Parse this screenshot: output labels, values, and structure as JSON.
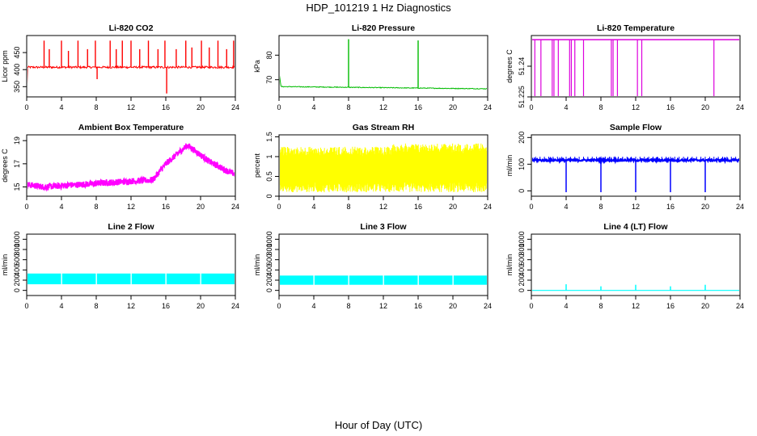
{
  "figure": {
    "title": "HDP_101219  1 Hz Diagnostics",
    "xlabel": "Hour of Day (UTC)"
  },
  "chart_data": [
    {
      "type": "line",
      "title": "Li-820 CO2",
      "ylabel": "Licor ppm",
      "color": "#ff0000",
      "xlim": [
        0,
        24
      ],
      "ylim": [
        320,
        500
      ],
      "xticks": [
        0,
        4,
        8,
        12,
        16,
        20,
        24
      ],
      "yticks": [
        350,
        400,
        450
      ],
      "baseline": 407,
      "noise": 3,
      "spikes": [
        {
          "x": 2.0,
          "y": 485
        },
        {
          "x": 2.6,
          "y": 460
        },
        {
          "x": 4.0,
          "y": 485
        },
        {
          "x": 4.8,
          "y": 455
        },
        {
          "x": 5.9,
          "y": 485
        },
        {
          "x": 7.0,
          "y": 460
        },
        {
          "x": 7.9,
          "y": 485
        },
        {
          "x": 8.1,
          "y": 372
        },
        {
          "x": 9.6,
          "y": 485
        },
        {
          "x": 10.3,
          "y": 460
        },
        {
          "x": 11.0,
          "y": 485
        },
        {
          "x": 12.0,
          "y": 485
        },
        {
          "x": 13.0,
          "y": 460
        },
        {
          "x": 14.0,
          "y": 485
        },
        {
          "x": 15.1,
          "y": 460
        },
        {
          "x": 15.9,
          "y": 485
        },
        {
          "x": 16.1,
          "y": 330
        },
        {
          "x": 17.2,
          "y": 460
        },
        {
          "x": 18.3,
          "y": 485
        },
        {
          "x": 19.0,
          "y": 465
        },
        {
          "x": 20.1,
          "y": 485
        },
        {
          "x": 21.0,
          "y": 465
        },
        {
          "x": 22.0,
          "y": 485
        },
        {
          "x": 23.0,
          "y": 460
        },
        {
          "x": 23.8,
          "y": 485
        },
        {
          "x": 24.0,
          "y": 385
        }
      ]
    },
    {
      "type": "line",
      "title": "Li-820 Pressure",
      "ylabel": "kPa",
      "color": "#00bb00",
      "xlim": [
        0,
        24
      ],
      "ylim": [
        63,
        88
      ],
      "xticks": [
        0,
        4,
        8,
        12,
        16,
        20,
        24
      ],
      "yticks": [
        70,
        80
      ],
      "start": 73,
      "baseline_start": 67.2,
      "baseline_end": 66.3,
      "spikes": [
        {
          "x": 8.0,
          "y": 86.5
        },
        {
          "x": 16.0,
          "y": 86.0
        },
        {
          "x": 24.0,
          "y": 86.0
        }
      ]
    },
    {
      "type": "line",
      "title": "Li-820 Temperature",
      "ylabel": "degrees C",
      "color": "#dd00dd",
      "xlim": [
        0,
        24
      ],
      "ylim": [
        51.225,
        51.255
      ],
      "xticks": [
        0,
        4,
        8,
        12,
        16,
        20,
        24
      ],
      "yticks": [
        51.225,
        51.24
      ],
      "baseline": 51.253,
      "dips": [
        0.4,
        1.1,
        2.4,
        2.6,
        3.1,
        4.4,
        4.6,
        5.0,
        6.0,
        9.2,
        9.4,
        9.9,
        12.2,
        12.7,
        21.0
      ]
    },
    {
      "type": "line",
      "title": "Ambient Box Temperature",
      "ylabel": "degrees C",
      "color": "#ff00ff",
      "xlim": [
        0,
        24
      ],
      "ylim": [
        14.2,
        19.5
      ],
      "xticks": [
        0,
        4,
        8,
        12,
        16,
        20,
        24
      ],
      "yticks": [
        15,
        17,
        19
      ],
      "x": [
        0,
        2,
        6,
        12,
        14.5,
        16,
        18.5,
        21,
        23,
        24
      ],
      "y": [
        15.2,
        15.0,
        15.2,
        15.5,
        15.6,
        17.0,
        18.6,
        17.2,
        16.4,
        16.1
      ],
      "band": 0.5
    },
    {
      "type": "line",
      "title": "Gas Stream RH",
      "ylabel": "percent",
      "color": "#ffff00",
      "xlim": [
        0,
        24
      ],
      "ylim": [
        0,
        1.55
      ],
      "xticks": [
        0,
        4,
        8,
        12,
        16,
        20,
        24
      ],
      "yticks": [
        0,
        0.5,
        1.0,
        1.5
      ],
      "low": 0.1,
      "high": 1.25
    },
    {
      "type": "line",
      "title": "Sample Flow",
      "ylabel": "ml/min",
      "color": "#0000ff",
      "xlim": [
        0,
        24
      ],
      "ylim": [
        -20,
        210
      ],
      "xticks": [
        0,
        4,
        8,
        12,
        16,
        20,
        24
      ],
      "yticks": [
        0,
        100,
        200
      ],
      "baseline": 115,
      "drops": [
        4,
        8,
        12,
        16,
        20,
        24
      ]
    },
    {
      "type": "line",
      "title": "Line 2 Flow",
      "ylabel": "ml/min",
      "color": "#00ffff",
      "xlim": [
        0,
        24
      ],
      "ylim": [
        -100,
        1100
      ],
      "xticks": [
        0,
        4,
        8,
        12,
        16,
        20,
        24
      ],
      "yticks": [
        0,
        200,
        400,
        600,
        800,
        1000
      ],
      "low": 120,
      "high": 330,
      "gaps": [
        4,
        8,
        12,
        16,
        20
      ]
    },
    {
      "type": "line",
      "title": "Line 3 Flow",
      "ylabel": "ml/min",
      "color": "#00ffff",
      "xlim": [
        0,
        24
      ],
      "ylim": [
        -100,
        1100
      ],
      "xticks": [
        0,
        4,
        8,
        12,
        16,
        20,
        24
      ],
      "yticks": [
        0,
        200,
        400,
        600,
        800,
        1000
      ],
      "low": 110,
      "high": 290,
      "gaps": [
        4,
        8,
        12,
        16,
        20
      ]
    },
    {
      "type": "line",
      "title": "Line 4 (LT) Flow",
      "ylabel": "ml/min",
      "color": "#00ffff",
      "xlim": [
        0,
        24
      ],
      "ylim": [
        -100,
        1100
      ],
      "xticks": [
        0,
        4,
        8,
        12,
        16,
        20,
        24
      ],
      "yticks": [
        0,
        200,
        400,
        600,
        800,
        1000
      ],
      "baseline": 0,
      "spikes": [
        {
          "x": 4,
          "y": 120
        },
        {
          "x": 8,
          "y": 80
        },
        {
          "x": 12,
          "y": 110
        },
        {
          "x": 16,
          "y": 80
        },
        {
          "x": 20,
          "y": 110
        },
        {
          "x": 24,
          "y": 80
        }
      ]
    }
  ]
}
